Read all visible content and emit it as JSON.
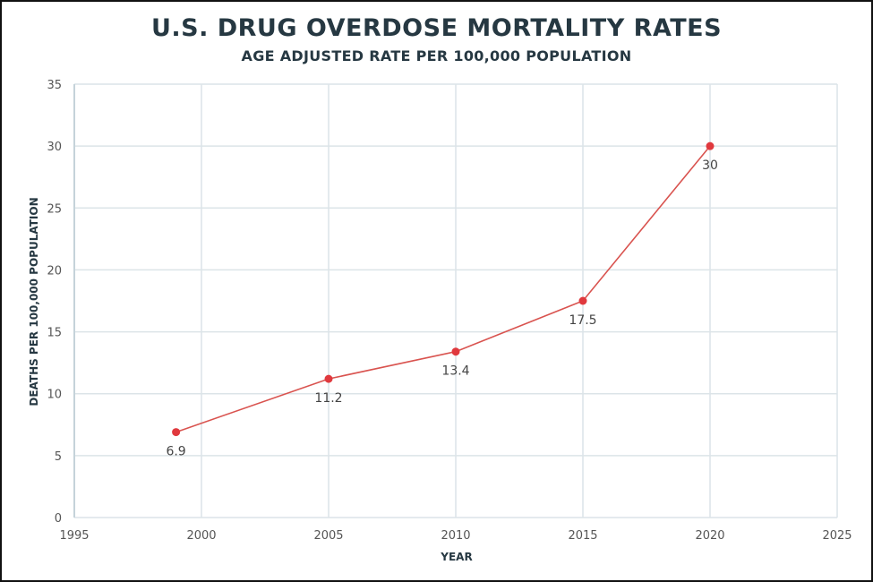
{
  "chart_data": {
    "type": "line",
    "title": "U.S. DRUG OVERDOSE MORTALITY RATES",
    "subtitle": "AGE ADJUSTED RATE PER 100,000 POPULATION",
    "xlabel": "YEAR",
    "ylabel": "DEATHS PER  100,000 POPULATION",
    "xlim": [
      1995,
      2025
    ],
    "ylim": [
      0,
      35
    ],
    "xticks": [
      1995,
      2000,
      2005,
      2010,
      2015,
      2020,
      2025
    ],
    "yticks": [
      0,
      5,
      10,
      15,
      20,
      25,
      30,
      35
    ],
    "grid": true,
    "x": [
      1999,
      2005,
      2010,
      2015,
      2020
    ],
    "values": [
      6.9,
      11.2,
      13.4,
      17.5,
      30
    ],
    "data_labels": [
      "6.9",
      "11.2",
      "13.4",
      "17.5",
      "30"
    ],
    "line_color": "#d9534f",
    "marker_color": "#e0393e",
    "grid_color": "#dce4e8"
  }
}
